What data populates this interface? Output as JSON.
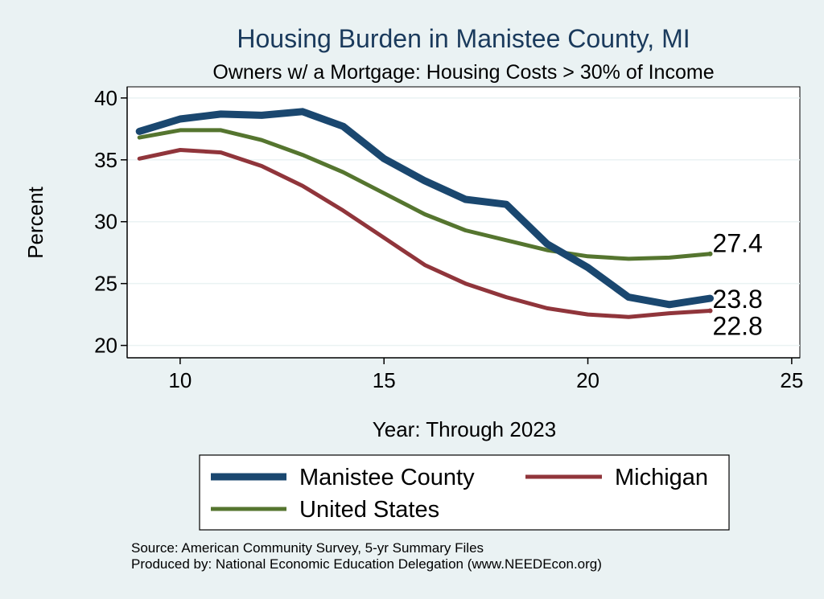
{
  "chart_data": {
    "type": "line",
    "title": "Housing Burden in Manistee County, MI",
    "subtitle": "Owners w/ a Mortgage: Housing Costs > 30% of Income",
    "xlabel": "Year: Through 2023",
    "ylabel": "Percent",
    "xlim": [
      8.7,
      25.2
    ],
    "ylim": [
      19.0,
      40.9
    ],
    "xticks": [
      10,
      15,
      20,
      25
    ],
    "yticks": [
      20,
      25,
      30,
      35,
      40
    ],
    "grid": true,
    "x": [
      9,
      10,
      11,
      12,
      13,
      14,
      15,
      16,
      17,
      18,
      19,
      20,
      21,
      22,
      23
    ],
    "series": [
      {
        "name": "Manistee County",
        "color": "#1a476f",
        "width": 9,
        "values": [
          37.3,
          38.3,
          38.7,
          38.6,
          38.9,
          37.7,
          35.1,
          33.3,
          31.8,
          31.4,
          28.2,
          26.3,
          23.9,
          23.3,
          23.8
        ],
        "end_label": "23.8"
      },
      {
        "name": "Michigan",
        "color": "#90353b",
        "width": 5,
        "values": [
          35.1,
          35.8,
          35.6,
          34.5,
          32.9,
          30.9,
          28.7,
          26.5,
          25.0,
          23.9,
          23.0,
          22.5,
          22.3,
          22.6,
          22.8
        ],
        "end_label": "22.8"
      },
      {
        "name": "United States",
        "color": "#55752f",
        "width": 5,
        "values": [
          36.8,
          37.4,
          37.4,
          36.6,
          35.4,
          34.0,
          32.3,
          30.6,
          29.3,
          28.5,
          27.7,
          27.2,
          27.0,
          27.1,
          27.4
        ],
        "end_label": "27.4"
      }
    ],
    "legend": [
      {
        "label": "Manistee County",
        "color": "#1a476f"
      },
      {
        "label": "Michigan",
        "color": "#90353b"
      },
      {
        "label": "United States",
        "color": "#55752f"
      }
    ]
  },
  "source": {
    "line1": "Source: American Community Survey, 5-yr Summary Files",
    "line2": "Produced by: National Economic Education Delegation (www.NEEDEcon.org)"
  }
}
